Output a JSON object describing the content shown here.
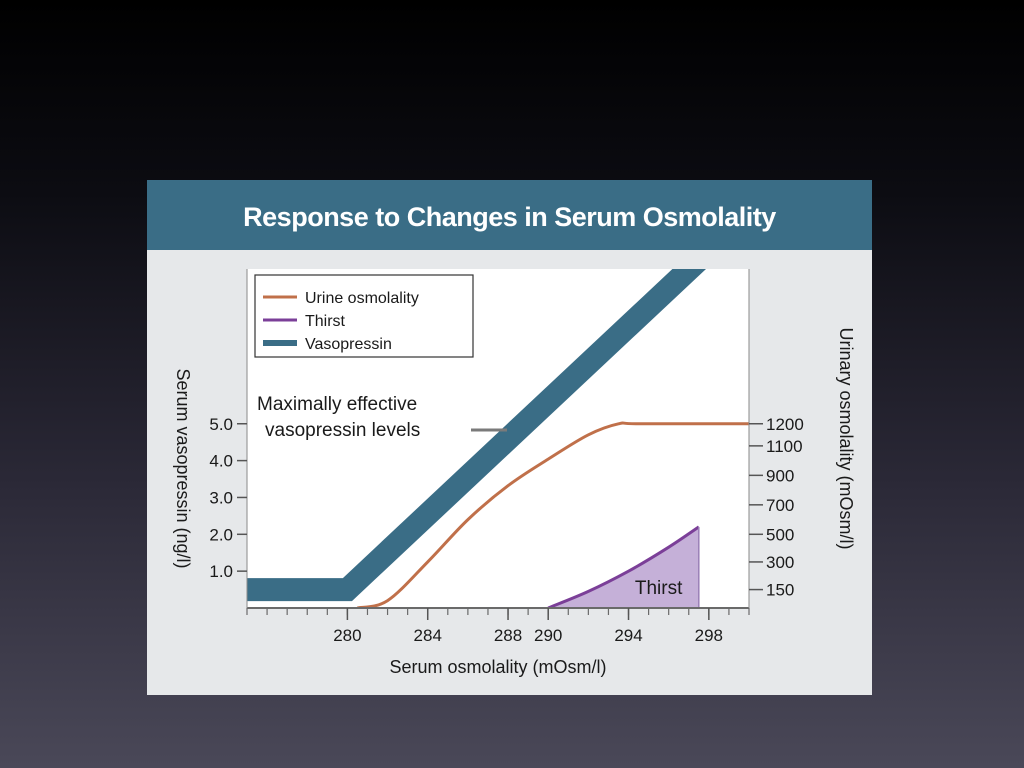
{
  "chart_data": {
    "type": "line",
    "title": "Response to Changes in Serum Osmolality",
    "xlabel": "Serum osmolality (mOsm/l)",
    "ylabel": "Serum vasopressin (ng/l)",
    "y2label": "Urinary osmolality (mOsm/l)",
    "x_ticks": [
      280,
      284,
      288,
      290,
      294,
      298
    ],
    "xlim": [
      275,
      300
    ],
    "y_ticks": [
      1.0,
      2.0,
      3.0,
      4.0,
      5.0
    ],
    "y_tick_labels": [
      "1.0",
      "2.0",
      "3.0",
      "4.0",
      "5.0"
    ],
    "ylim": [
      0,
      9.2
    ],
    "y2_ticks": [
      150,
      300,
      500,
      700,
      900,
      1100,
      1200
    ],
    "y2_scale": [
      [
        0,
        0
      ],
      [
        150,
        0.5
      ],
      [
        300,
        1.25
      ],
      [
        500,
        2.0
      ],
      [
        700,
        2.8
      ],
      [
        900,
        3.6
      ],
      [
        1100,
        4.4
      ],
      [
        1200,
        5.0
      ]
    ],
    "legend": "top-left",
    "series": [
      {
        "name": "Urine osmolality",
        "color": "#c0704a",
        "axis": "right",
        "x": [
          280.5,
          282,
          284,
          286,
          288,
          290,
          292,
          293.5,
          294.5,
          300
        ],
        "values": [
          0,
          60,
          300,
          600,
          830,
          1010,
          1150,
          1200,
          1200,
          1200
        ]
      },
      {
        "name": "Thirst",
        "color": "#7b3f98",
        "axis": "left",
        "filled": true,
        "fill_label": "Thirst",
        "x": [
          290,
          292,
          294,
          296,
          297.5
        ],
        "values": [
          0,
          0.45,
          1.0,
          1.65,
          2.2
        ]
      },
      {
        "name": "Vasopressin",
        "color": "#3a6d86",
        "axis": "left",
        "band": true,
        "x": [
          275,
          280,
          298
        ],
        "values": [
          0.5,
          0.5,
          9.7
        ]
      }
    ],
    "annotations": [
      {
        "text_lines": [
          "Maximally effective",
          "vasopressin levels"
        ]
      },
      {
        "text": "Thirst"
      }
    ]
  }
}
